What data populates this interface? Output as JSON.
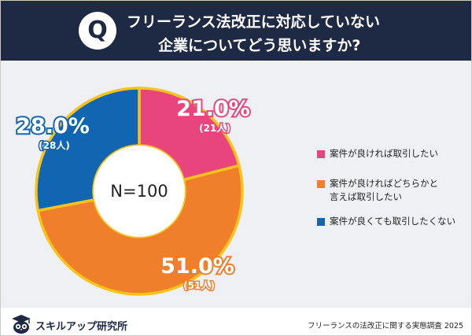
{
  "question": {
    "badge": "Q",
    "line1": "フリーランス法改正に対応していない",
    "line2": "企業についてどう思いますか?"
  },
  "chart_data": {
    "type": "pie",
    "center_label": "N=100",
    "slices": [
      {
        "label": "案件が良ければ取引したい",
        "value": 21.0,
        "count": 21,
        "percent_label": "21.0%",
        "count_label": "(21人)",
        "color": "#e8457e"
      },
      {
        "label": "案件が良ければどちらかと言えば取引したい",
        "value": 51.0,
        "count": 51,
        "percent_label": "51.0%",
        "count_label": "(51人)",
        "color": "#ef7f2a"
      },
      {
        "label": "案件が良くても取引したくない",
        "value": 28.0,
        "count": 28,
        "percent_label": "28.0%",
        "count_label": "(28人)",
        "color": "#1265b0"
      }
    ],
    "legend_position": "right"
  },
  "legend": {
    "items": [
      {
        "lines": [
          "案件が良ければ取引したい"
        ],
        "color": "#e8457e"
      },
      {
        "lines": [
          "案件が良ければどちらかと",
          "言えば取引したい"
        ],
        "color": "#ef7f2a"
      },
      {
        "lines": [
          "案件が良くても取引したくない"
        ],
        "color": "#1265b0"
      }
    ]
  },
  "footer": {
    "brand": "スキルアップ研究所",
    "caption": "フリーランスの法改正に関する実態調査 2025"
  },
  "colors": {
    "header_bg": "#1e2a44",
    "ring_outline": "#f7c21a"
  }
}
